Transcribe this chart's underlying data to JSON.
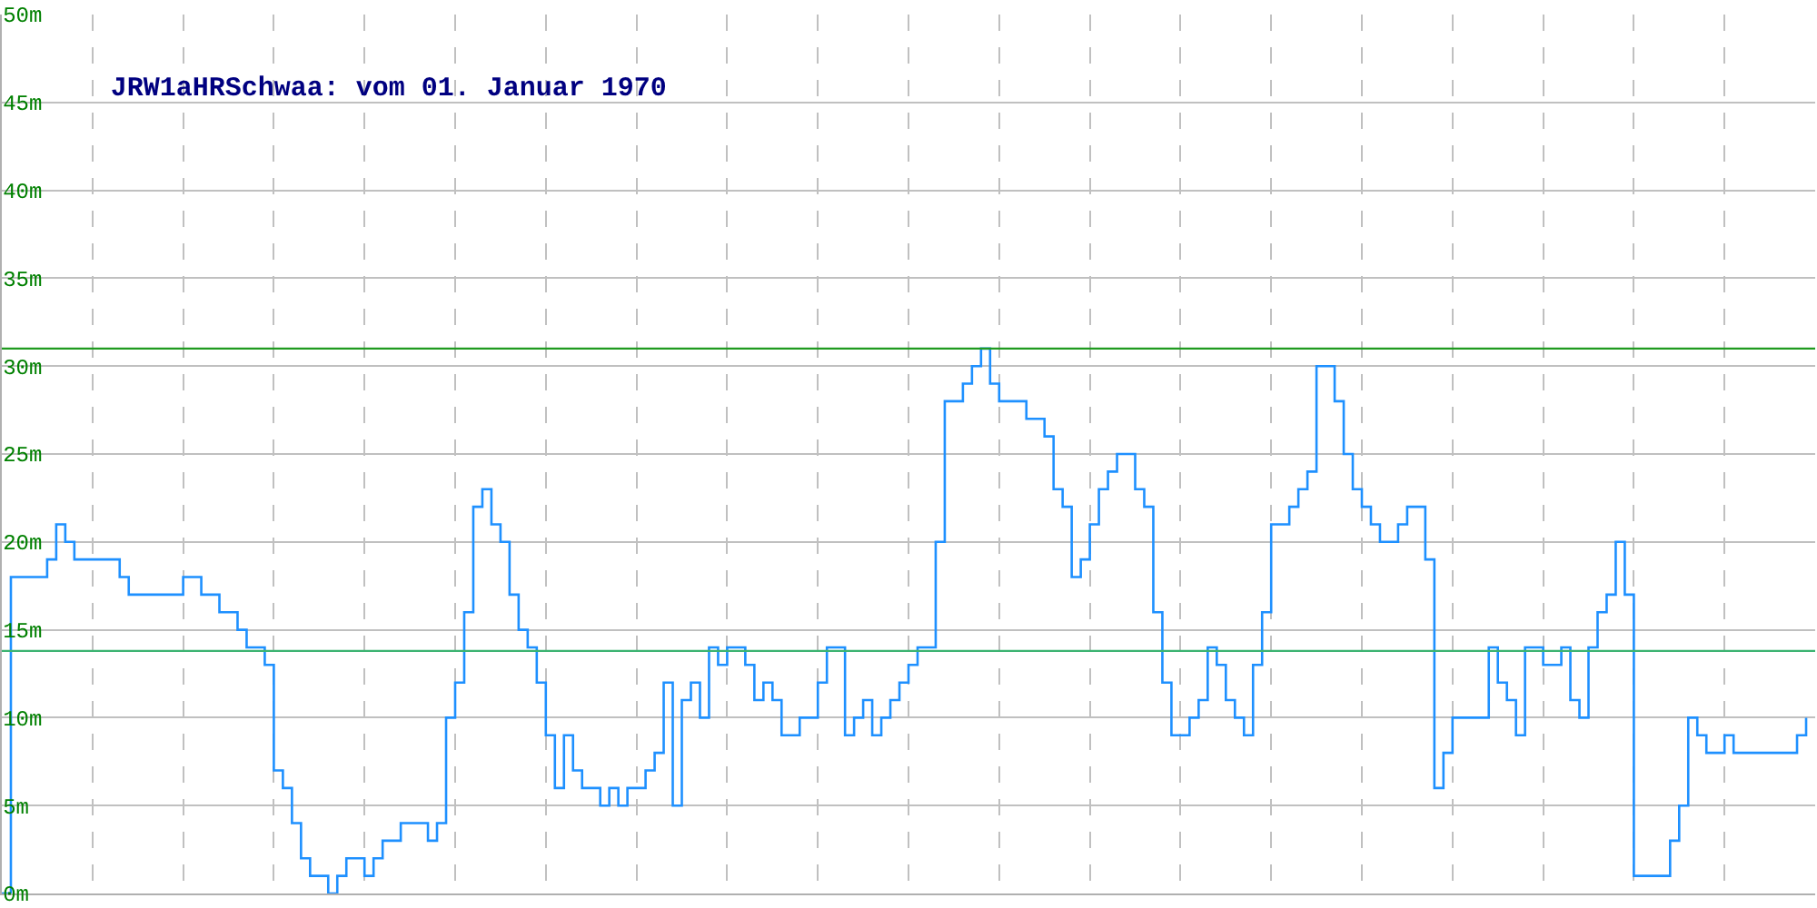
{
  "chart_data": {
    "type": "step",
    "title": "JRW1aHRSchwaa: vom 01. Januar 1970",
    "categories": [
      null,
      null,
      null,
      null,
      null,
      null,
      null,
      null,
      null,
      null,
      null,
      null,
      null,
      null,
      null,
      null,
      null,
      null,
      null,
      null,
      null,
      null,
      null,
      null,
      null,
      null,
      null,
      null,
      null,
      null,
      null,
      null,
      null,
      null,
      null,
      null,
      null,
      null,
      null,
      null,
      null,
      null,
      null,
      null,
      null,
      null,
      null,
      null,
      null,
      null,
      null,
      null,
      null,
      null,
      null,
      null,
      null,
      null,
      null,
      null,
      null,
      null,
      null,
      null,
      null,
      null,
      null,
      null,
      null,
      null,
      null,
      null,
      null,
      null,
      null,
      null,
      null,
      null,
      null,
      null,
      null,
      null,
      null,
      null,
      null,
      null,
      null,
      null,
      null,
      null,
      null,
      null,
      null,
      null,
      null,
      null,
      null,
      null,
      null,
      null,
      null,
      null,
      null,
      null,
      null,
      null,
      null,
      null,
      null,
      null,
      null,
      null,
      null,
      null,
      null,
      null,
      null,
      null,
      null,
      null,
      null,
      null,
      null,
      null,
      null,
      null,
      null,
      null,
      null,
      null,
      null,
      null,
      null,
      null,
      null,
      null,
      null,
      null,
      null,
      null,
      null,
      null,
      null,
      null,
      null,
      null,
      null,
      null,
      null,
      null,
      null,
      null,
      null,
      null,
      null,
      null,
      null,
      null,
      null,
      null,
      null,
      null,
      null,
      null,
      null,
      null,
      null,
      null,
      null,
      null,
      null,
      null,
      null,
      null,
      null,
      null,
      null,
      null,
      null,
      null,
      null,
      null,
      null,
      null,
      null,
      null,
      null,
      null,
      null,
      null,
      null,
      null,
      null,
      null,
      null,
      null,
      null,
      null,
      null,
      null
    ],
    "series": [
      {
        "color": "#1e90ff",
        "values": [
          0,
          18,
          18,
          18,
          18,
          19,
          21,
          20,
          19,
          19,
          19,
          19,
          19,
          18,
          17,
          17,
          17,
          17,
          17,
          17,
          18,
          18,
          17,
          17,
          16,
          16,
          15,
          14,
          14,
          13,
          7,
          6,
          4,
          2,
          1,
          1,
          0,
          1,
          2,
          2,
          1,
          2,
          3,
          3,
          4,
          4,
          4,
          3,
          4,
          10,
          12,
          16,
          22,
          23,
          21,
          20,
          17,
          15,
          14,
          12,
          9,
          6,
          9,
          7,
          6,
          6,
          5,
          6,
          5,
          6,
          6,
          7,
          8,
          12,
          5,
          11,
          12,
          10,
          14,
          13,
          14,
          14,
          13,
          11,
          12,
          11,
          9,
          9,
          10,
          10,
          12,
          14,
          14,
          9,
          10,
          11,
          9,
          10,
          11,
          12,
          13,
          14,
          14,
          20,
          28,
          28,
          29,
          30,
          31,
          29,
          28,
          28,
          28,
          27,
          27,
          26,
          23,
          22,
          18,
          19,
          21,
          23,
          24,
          25,
          25,
          23,
          22,
          16,
          12,
          9,
          9,
          10,
          11,
          14,
          13,
          11,
          10,
          9,
          13,
          16,
          21,
          21,
          22,
          23,
          24,
          30,
          30,
          28,
          25,
          23,
          22,
          21,
          20,
          20,
          21,
          22,
          22,
          19,
          6,
          8,
          10,
          10,
          10,
          10,
          14,
          12,
          11,
          9,
          14,
          14,
          13,
          13,
          14,
          11,
          10,
          14,
          16,
          17,
          20,
          17,
          1,
          1,
          1,
          1,
          3,
          5,
          10,
          9,
          8,
          8,
          9,
          8,
          8,
          8,
          8,
          8,
          8,
          8,
          9,
          10
        ]
      }
    ],
    "ylim": [
      0,
      50
    ],
    "yticks": [
      {
        "value": 0,
        "label": "0m"
      },
      {
        "value": 5,
        "label": "5m"
      },
      {
        "value": 10,
        "label": "10m"
      },
      {
        "value": 15,
        "label": "15m"
      },
      {
        "value": 20,
        "label": "20m"
      },
      {
        "value": 25,
        "label": "25m"
      },
      {
        "value": 30,
        "label": "30m"
      },
      {
        "value": 35,
        "label": "35m"
      },
      {
        "value": 40,
        "label": "40m"
      },
      {
        "value": 45,
        "label": "45m"
      },
      {
        "value": 50,
        "label": "50m"
      }
    ],
    "grid": true,
    "tick_labels": "y",
    "ref_lines": [
      {
        "axis": "y",
        "value": 31,
        "color": "#1f9a1f"
      },
      {
        "axis": "y",
        "value": 13.8,
        "color": "#3cb371"
      }
    ]
  }
}
